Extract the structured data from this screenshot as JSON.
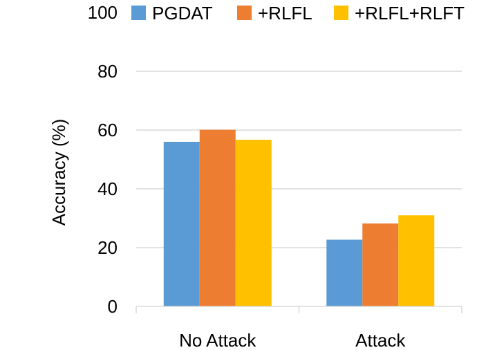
{
  "chart_data": {
    "type": "bar",
    "categories": [
      "No Attack",
      "Attack"
    ],
    "series": [
      {
        "name": "PGDAT",
        "values": [
          56,
          22.7
        ],
        "color": "#5B9BD5"
      },
      {
        "name": "+RLFL",
        "values": [
          60.1,
          28.2
        ],
        "color": "#ED7D31"
      },
      {
        "name": "+RLFL+RLFT",
        "values": [
          56.7,
          31
        ],
        "color": "#FFC000"
      }
    ],
    "ylabel": "Accuracy  (%)",
    "xlabel": "",
    "ylim": [
      0,
      100
    ],
    "yticks": [
      0,
      20,
      40,
      60,
      80,
      100
    ],
    "grid": true,
    "legend": "top"
  }
}
